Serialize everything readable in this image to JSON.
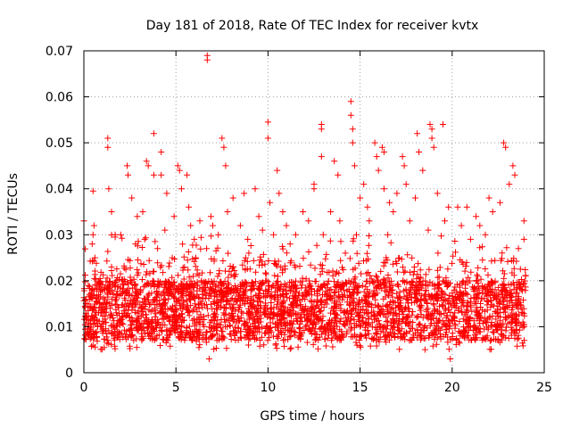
{
  "chart_data": {
    "type": "scatter",
    "title": "Day 181 of 2018, Rate Of TEC Index for receiver kvtx",
    "xlabel": "GPS time / hours",
    "ylabel": "ROTI / TECUs",
    "xlim": [
      0,
      25
    ],
    "ylim": [
      0,
      0.07
    ],
    "xticks": [
      "0",
      "5",
      "10",
      "15",
      "20",
      "25"
    ],
    "yticks": [
      "0",
      "0.01",
      "0.02",
      "0.03",
      "0.04",
      "0.05",
      "0.06",
      "0.07"
    ],
    "grid": true,
    "marker": "+",
    "colors": {
      "series": "#ff0000",
      "grid": "#a0a0a0",
      "axis": "#000000"
    },
    "series": [
      {
        "name": "ROTI",
        "dense_band": {
          "x_range": [
            0,
            24
          ],
          "y_range": [
            0.005,
            0.022
          ]
        },
        "points": [
          [
            0.0,
            0.033
          ],
          [
            0.1,
            0.016
          ],
          [
            0.3,
            0.017
          ],
          [
            0.45,
            0.028
          ],
          [
            0.5,
            0.03
          ],
          [
            0.55,
            0.032
          ],
          [
            0.6,
            0.025
          ],
          [
            0.5,
            0.009
          ],
          [
            0.5,
            0.006
          ],
          [
            0.5,
            0.0395
          ],
          [
            1.3,
            0.051
          ],
          [
            1.3,
            0.049
          ],
          [
            1.35,
            0.04
          ],
          [
            1.5,
            0.035
          ],
          [
            1.5,
            0.023
          ],
          [
            1.7,
            0.03
          ],
          [
            1.7,
            0.0295
          ],
          [
            2.0,
            0.03
          ],
          [
            2.35,
            0.045
          ],
          [
            2.4,
            0.043
          ],
          [
            2.6,
            0.038
          ],
          [
            2.8,
            0.028
          ],
          [
            2.9,
            0.034
          ],
          [
            3.2,
            0.035
          ],
          [
            3.3,
            0.029
          ],
          [
            3.4,
            0.046
          ],
          [
            3.5,
            0.045
          ],
          [
            3.8,
            0.052
          ],
          [
            3.8,
            0.043
          ],
          [
            4.0,
            0.027
          ],
          [
            4.2,
            0.043
          ],
          [
            4.2,
            0.048
          ],
          [
            4.4,
            0.031
          ],
          [
            4.5,
            0.039
          ],
          [
            4.8,
            0.025
          ],
          [
            4.9,
            0.034
          ],
          [
            5.1,
            0.045
          ],
          [
            5.2,
            0.044
          ],
          [
            5.3,
            0.04
          ],
          [
            5.6,
            0.043
          ],
          [
            5.7,
            0.036
          ],
          [
            5.8,
            0.032
          ],
          [
            6.0,
            0.029
          ],
          [
            6.3,
            0.033
          ],
          [
            6.7,
            0.069
          ],
          [
            6.7,
            0.068
          ],
          [
            6.8,
            0.003
          ],
          [
            6.9,
            0.034
          ],
          [
            7.0,
            0.032
          ],
          [
            7.3,
            0.03
          ],
          [
            7.5,
            0.051
          ],
          [
            7.6,
            0.049
          ],
          [
            7.7,
            0.045
          ],
          [
            7.8,
            0.035
          ],
          [
            8.1,
            0.038
          ],
          [
            8.5,
            0.032
          ],
          [
            8.7,
            0.039
          ],
          [
            8.9,
            0.029
          ],
          [
            9.3,
            0.04
          ],
          [
            9.5,
            0.034
          ],
          [
            9.7,
            0.031
          ],
          [
            10.0,
            0.0545
          ],
          [
            10.0,
            0.051
          ],
          [
            10.1,
            0.037
          ],
          [
            10.3,
            0.03
          ],
          [
            10.5,
            0.044
          ],
          [
            10.6,
            0.039
          ],
          [
            10.8,
            0.035
          ],
          [
            11.0,
            0.032
          ],
          [
            11.2,
            0.028
          ],
          [
            11.5,
            0.03
          ],
          [
            11.9,
            0.035
          ],
          [
            12.2,
            0.033
          ],
          [
            12.5,
            0.04
          ],
          [
            12.5,
            0.041
          ],
          [
            12.9,
            0.054
          ],
          [
            12.9,
            0.053
          ],
          [
            12.9,
            0.047
          ],
          [
            13.0,
            0.03
          ],
          [
            13.4,
            0.035
          ],
          [
            13.6,
            0.046
          ],
          [
            13.8,
            0.043
          ],
          [
            13.9,
            0.033
          ],
          [
            14.2,
            0.026
          ],
          [
            14.5,
            0.059
          ],
          [
            14.5,
            0.056
          ],
          [
            14.6,
            0.053
          ],
          [
            14.6,
            0.05
          ],
          [
            14.7,
            0.045
          ],
          [
            14.8,
            0.03
          ],
          [
            15.0,
            0.038
          ],
          [
            15.2,
            0.041
          ],
          [
            15.4,
            0.036
          ],
          [
            15.5,
            0.033
          ],
          [
            15.8,
            0.05
          ],
          [
            15.9,
            0.047
          ],
          [
            16.0,
            0.044
          ],
          [
            16.2,
            0.049
          ],
          [
            16.3,
            0.048
          ],
          [
            16.3,
            0.04
          ],
          [
            16.5,
            0.03
          ],
          [
            16.6,
            0.037
          ],
          [
            16.8,
            0.035
          ],
          [
            17.0,
            0.039
          ],
          [
            17.3,
            0.047
          ],
          [
            17.4,
            0.045
          ],
          [
            17.5,
            0.041
          ],
          [
            17.7,
            0.033
          ],
          [
            18.0,
            0.038
          ],
          [
            18.1,
            0.052
          ],
          [
            18.2,
            0.048
          ],
          [
            18.4,
            0.044
          ],
          [
            18.7,
            0.031
          ],
          [
            18.8,
            0.054
          ],
          [
            18.9,
            0.053
          ],
          [
            18.9,
            0.051
          ],
          [
            19.0,
            0.049
          ],
          [
            19.2,
            0.039
          ],
          [
            19.5,
            0.054
          ],
          [
            19.6,
            0.033
          ],
          [
            19.8,
            0.036
          ],
          [
            19.9,
            0.003
          ],
          [
            20.3,
            0.036
          ],
          [
            20.5,
            0.032
          ],
          [
            20.8,
            0.036
          ],
          [
            21.0,
            0.029
          ],
          [
            21.3,
            0.034
          ],
          [
            21.5,
            0.032
          ],
          [
            21.8,
            0.03
          ],
          [
            22.0,
            0.038
          ],
          [
            22.2,
            0.035
          ],
          [
            22.6,
            0.037
          ],
          [
            22.8,
            0.05
          ],
          [
            22.9,
            0.049
          ],
          [
            23.1,
            0.041
          ],
          [
            23.3,
            0.045
          ],
          [
            23.4,
            0.043
          ],
          [
            23.6,
            0.027
          ],
          [
            23.9,
            0.033
          ],
          [
            23.9,
            0.029
          ]
        ]
      }
    ]
  }
}
